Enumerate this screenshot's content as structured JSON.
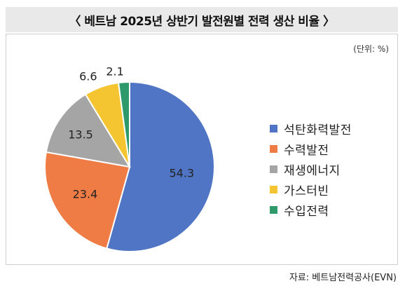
{
  "header": {
    "title": "〈 베트남 2025년 상반기 발전원별 전력 생산 비율 〉"
  },
  "unit_label": "(단위: %)",
  "source": "자료: 베트남전력공사(EVN)",
  "chart_data": {
    "type": "pie",
    "title": "〈 베트남 2025년 상반기 발전원별 전력 생산 비율 〉",
    "unit": "(단위: %)",
    "legend_position": "right",
    "slices": [
      {
        "label": "석탄화력발전",
        "value": 54.3,
        "display": "54.3",
        "color": "#4f75c4"
      },
      {
        "label": "수력발전",
        "value": 23.4,
        "display": "23.4",
        "color": "#ef7b45"
      },
      {
        "label": "재생에너지",
        "value": 13.5,
        "display": "13.5",
        "color": "#a5a5a5"
      },
      {
        "label": "가스터빈",
        "value": 6.6,
        "display": "6.6",
        "color": "#f4c431"
      },
      {
        "label": "수입전력",
        "value": 2.1,
        "display": "2.1",
        "color": "#2e9a6b"
      }
    ]
  }
}
